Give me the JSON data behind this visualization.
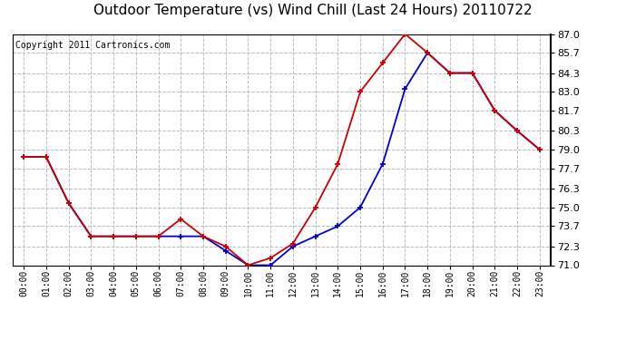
{
  "title": "Outdoor Temperature (vs) Wind Chill (Last 24 Hours) 20110722",
  "copyright": "Copyright 2011 Cartronics.com",
  "x_labels": [
    "00:00",
    "01:00",
    "02:00",
    "03:00",
    "04:00",
    "05:00",
    "06:00",
    "07:00",
    "08:00",
    "09:00",
    "10:00",
    "11:00",
    "12:00",
    "13:00",
    "14:00",
    "15:00",
    "16:00",
    "17:00",
    "18:00",
    "19:00",
    "20:00",
    "21:00",
    "22:00",
    "23:00"
  ],
  "temp_red": [
    78.5,
    78.5,
    75.3,
    73.0,
    73.0,
    73.0,
    73.0,
    74.2,
    73.0,
    72.3,
    71.0,
    71.5,
    72.5,
    75.0,
    78.0,
    83.0,
    85.0,
    87.0,
    85.7,
    84.3,
    84.3,
    81.7,
    80.3,
    79.0
  ],
  "wind_chill_blue": [
    78.5,
    78.5,
    75.3,
    73.0,
    73.0,
    73.0,
    73.0,
    73.0,
    73.0,
    72.0,
    71.0,
    71.0,
    72.3,
    73.0,
    73.7,
    75.0,
    78.0,
    83.2,
    85.7,
    84.3,
    84.3,
    81.7,
    80.3,
    79.0
  ],
  "ylim_min": 71.0,
  "ylim_max": 87.0,
  "yticks": [
    71.0,
    72.3,
    73.7,
    75.0,
    76.3,
    77.7,
    79.0,
    80.3,
    81.7,
    83.0,
    84.3,
    85.7,
    87.0
  ],
  "bg_color": "#ffffff",
  "plot_bg_color": "#ffffff",
  "grid_color": "#bbbbbb",
  "red_color": "#cc0000",
  "blue_color": "#0000cc",
  "title_fontsize": 11,
  "copyright_fontsize": 7
}
